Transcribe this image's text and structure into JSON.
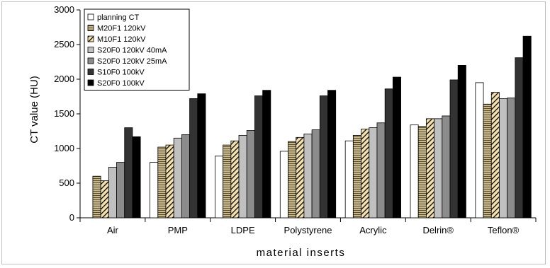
{
  "chart_data": {
    "type": "bar",
    "title": "",
    "xlabel": "material inserts",
    "ylabel": "CT value (HU)",
    "ylim": [
      0,
      3000
    ],
    "yticks": [
      "0",
      "500",
      "1000",
      "1500",
      "2000",
      "2500",
      "3000"
    ],
    "grid": false,
    "legend_position": "top-left",
    "categories": [
      "Air",
      "PMP",
      "LDPE",
      "Polystyrene",
      "Acrylic",
      "Delrin®",
      "Teflon®"
    ],
    "series": [
      {
        "name": "planning CT",
        "values": [
          0,
          800,
          890,
          960,
          1110,
          1340,
          1950
        ],
        "color": "#ffffff",
        "pattern": "solid"
      },
      {
        "name": "M20F1 120kV",
        "values": [
          600,
          1020,
          1050,
          1100,
          1190,
          1320,
          1640
        ],
        "color": "#c7b98f",
        "pattern": "hlines"
      },
      {
        "name": "M10F1 120kV",
        "values": [
          535,
          1050,
          1110,
          1160,
          1280,
          1430,
          1810
        ],
        "color": "#f3e0b0",
        "pattern": "diag"
      },
      {
        "name": "S20F0 120kV 40mA",
        "values": [
          730,
          1150,
          1190,
          1210,
          1300,
          1430,
          1720
        ],
        "color": "#c0c0c0",
        "pattern": "solid"
      },
      {
        "name": "S20F0 120kV 25mA",
        "values": [
          800,
          1200,
          1260,
          1270,
          1370,
          1470,
          1730
        ],
        "color": "#8c8c8c",
        "pattern": "solid"
      },
      {
        "name": "S10F0 100kV",
        "values": [
          1300,
          1720,
          1760,
          1760,
          1860,
          1990,
          2310
        ],
        "color": "#333333",
        "pattern": "solid"
      },
      {
        "name": "S20F0 100kV",
        "values": [
          1170,
          1790,
          1840,
          1840,
          2030,
          2200,
          2620
        ],
        "color": "#000000",
        "pattern": "solid"
      }
    ]
  }
}
